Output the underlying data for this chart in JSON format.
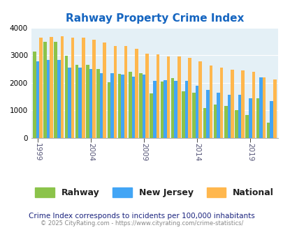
{
  "title": "Rahway Property Crime Index",
  "years": [
    1999,
    2000,
    2001,
    2002,
    2003,
    2004,
    2005,
    2006,
    2007,
    2008,
    2009,
    2010,
    2011,
    2012,
    2013,
    2014,
    2015,
    2016,
    2017,
    2018,
    2019,
    2020,
    2021
  ],
  "rahway": [
    3130,
    3490,
    3480,
    2990,
    2660,
    2660,
    2500,
    2010,
    2330,
    2390,
    2350,
    1610,
    2050,
    2170,
    1700,
    1630,
    1090,
    1210,
    1150,
    1000,
    840,
    1440,
    550
  ],
  "new_jersey": [
    2780,
    2840,
    2830,
    2560,
    2550,
    2490,
    2350,
    2350,
    2300,
    2220,
    2310,
    2060,
    2100,
    2060,
    2070,
    1900,
    1730,
    1650,
    1570,
    1560,
    1440,
    2200,
    1350
  ],
  "national": [
    3640,
    3660,
    3680,
    3640,
    3640,
    3560,
    3450,
    3340,
    3330,
    3230,
    3050,
    3030,
    2960,
    2950,
    2900,
    2770,
    2620,
    2540,
    2480,
    2460,
    2400,
    2200,
    2110
  ],
  "color_rahway": "#8bc34a",
  "color_nj": "#42a5f5",
  "color_national": "#ffb74d",
  "background_color": "#e4f0f6",
  "ylim": [
    0,
    4000
  ],
  "ylabel_ticks": [
    0,
    1000,
    2000,
    3000,
    4000
  ],
  "subtitle": "Crime Index corresponds to incidents per 100,000 inhabitants",
  "footer": "© 2025 CityRating.com - https://www.cityrating.com/crime-statistics/",
  "title_color": "#1565c0",
  "subtitle_color": "#1a237e",
  "footer_color": "#888888",
  "tick_years": [
    1999,
    2004,
    2009,
    2014,
    2019
  ]
}
